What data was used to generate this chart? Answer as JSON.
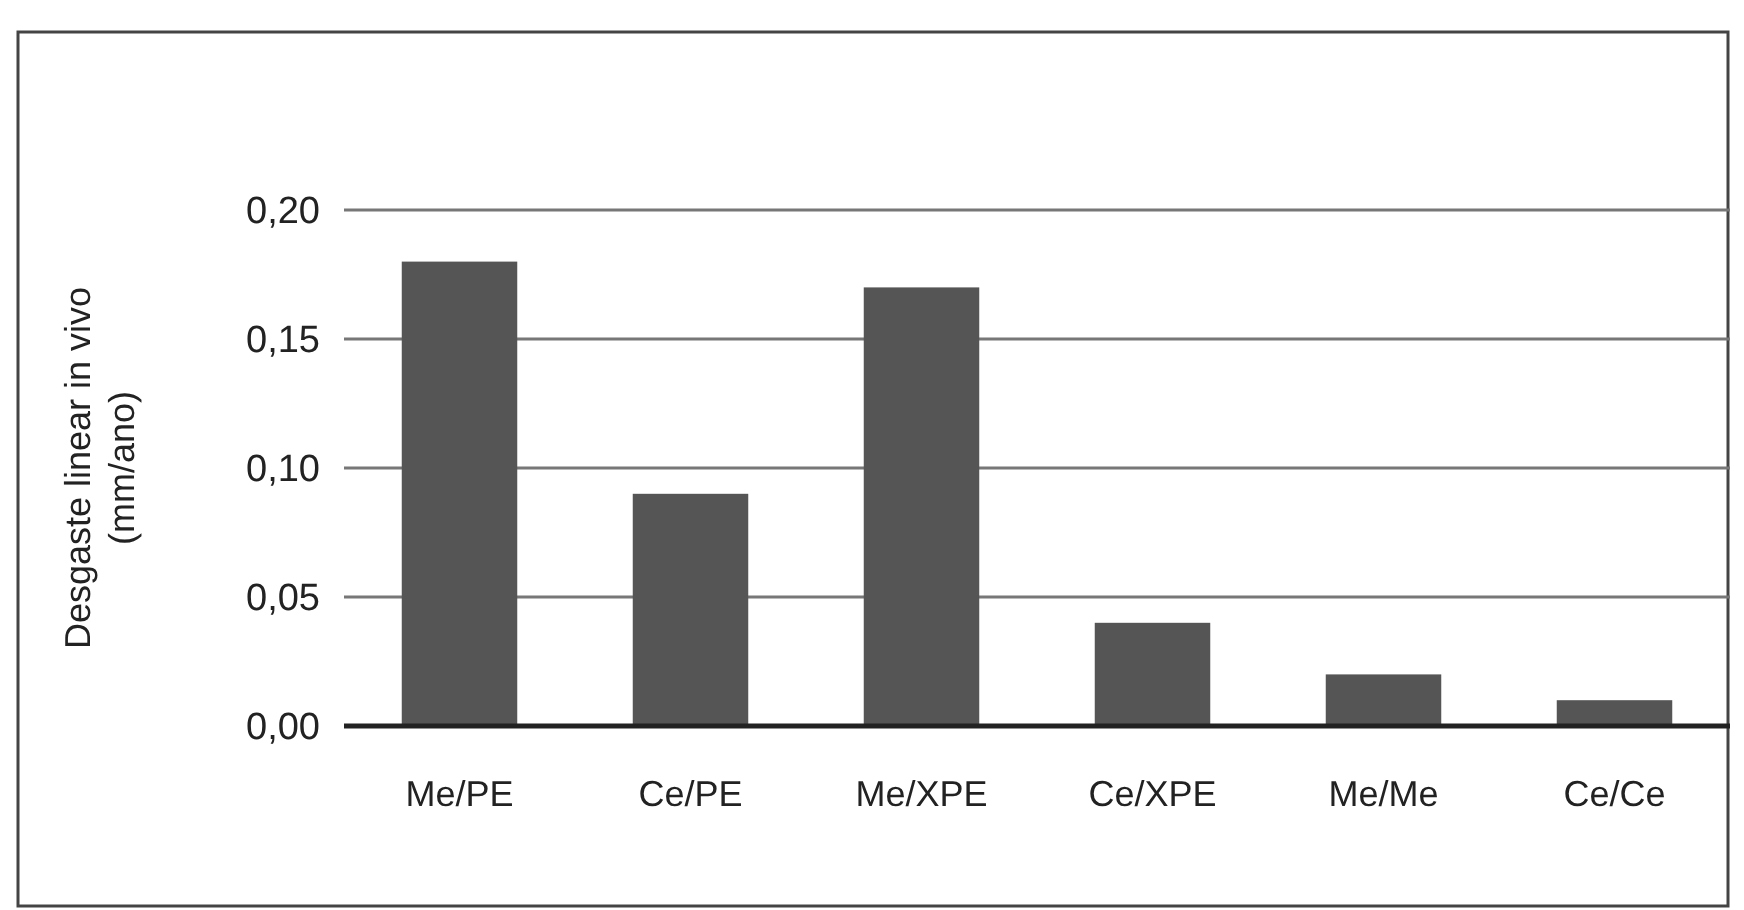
{
  "chart_data": {
    "type": "bar",
    "ylabel": "Desgaste linear in vivo\n(mm/ano)",
    "categories": [
      "Me/PE",
      "Ce/PE",
      "Me/XPE",
      "Ce/XPE",
      "Me/Me",
      "Ce/Ce"
    ],
    "values": [
      0.18,
      0.09,
      0.17,
      0.04,
      0.02,
      0.01
    ],
    "color": "#555555",
    "ylim": [
      0,
      0.2
    ],
    "yticks": [
      {
        "value": 0,
        "label": "0,00"
      },
      {
        "value": 0.05,
        "label": "0,05"
      },
      {
        "value": 0.1,
        "label": "0,10"
      },
      {
        "value": 0.15,
        "label": "0,15"
      },
      {
        "value": 0.2,
        "label": "0,20"
      }
    ],
    "grid": "y"
  }
}
